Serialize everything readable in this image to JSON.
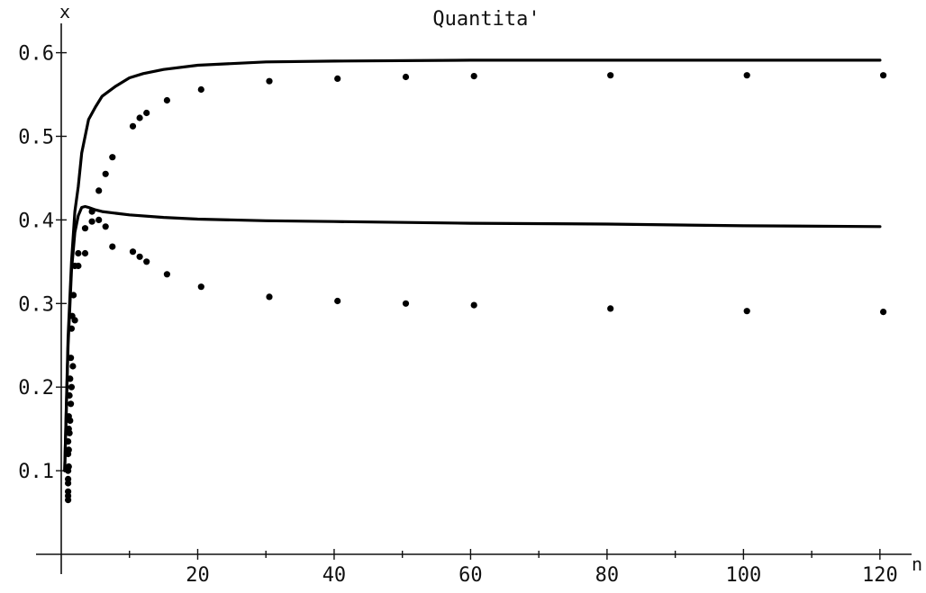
{
  "chart_data": {
    "type": "line",
    "title": "Quantita'",
    "xlabel": "n",
    "ylabel": "x",
    "xlim": [
      0,
      122
    ],
    "ylim": [
      0,
      0.62
    ],
    "x_ticks": [
      20,
      40,
      60,
      80,
      100,
      120
    ],
    "x_tick_labels": [
      "20",
      "40",
      "60",
      "80",
      "100",
      "120"
    ],
    "y_ticks": [
      0.1,
      0.2,
      0.3,
      0.4,
      0.5,
      0.6
    ],
    "y_tick_labels": [
      "0.1",
      "0.2",
      "0.3",
      "0.4",
      "0.5",
      "0.6"
    ],
    "grid": false,
    "legend": "none",
    "lines": [
      {
        "x": [
          0.5,
          1,
          1.5,
          2,
          2.5,
          3,
          4,
          5,
          6,
          8,
          10,
          12,
          15,
          20,
          30,
          40,
          60,
          80,
          100,
          120
        ],
        "y": [
          0.1,
          0.26,
          0.35,
          0.41,
          0.44,
          0.48,
          0.52,
          0.535,
          0.548,
          0.56,
          0.57,
          0.575,
          0.58,
          0.585,
          0.589,
          0.59,
          0.591,
          0.591,
          0.591,
          0.591
        ]
      },
      {
        "x": [
          0.5,
          1,
          1.5,
          2,
          2.5,
          3,
          3.5,
          4,
          5,
          6,
          8,
          10,
          15,
          20,
          30,
          40,
          60,
          80,
          100,
          120
        ],
        "y": [
          0.1,
          0.25,
          0.34,
          0.385,
          0.405,
          0.415,
          0.416,
          0.415,
          0.412,
          0.41,
          0.408,
          0.406,
          0.403,
          0.401,
          0.399,
          0.398,
          0.396,
          0.395,
          0.393,
          0.392
        ]
      }
    ],
    "points": [
      {
        "x": [
          1.0,
          1.0,
          1.0,
          1.0,
          1.0,
          1.1,
          1.1,
          1.2,
          1.3,
          1.4,
          1.5,
          1.6,
          1.8,
          2.0,
          2.5,
          3.5,
          4.5,
          5.5,
          6.5,
          7.5,
          10.5,
          11.5,
          12.5,
          15.5,
          20.5,
          30.5,
          40.5,
          50.5,
          60.5,
          80.5,
          100.5,
          120.5
        ],
        "y": [
          0.07,
          0.085,
          0.1,
          0.12,
          0.135,
          0.15,
          0.165,
          0.19,
          0.21,
          0.235,
          0.27,
          0.285,
          0.31,
          0.345,
          0.36,
          0.39,
          0.41,
          0.435,
          0.455,
          0.475,
          0.512,
          0.522,
          0.528,
          0.543,
          0.556,
          0.566,
          0.569,
          0.571,
          0.572,
          0.573,
          0.573,
          0.573
        ]
      },
      {
        "x": [
          1.0,
          1.0,
          1.0,
          1.1,
          1.1,
          1.2,
          1.3,
          1.4,
          1.5,
          1.7,
          2.0,
          2.5,
          3.5,
          4.5,
          5.5,
          6.5,
          7.5,
          10.5,
          11.5,
          12.5,
          15.5,
          20.5,
          30.5,
          40.5,
          50.5,
          60.5,
          80.5,
          100.5,
          120.5
        ],
        "y": [
          0.065,
          0.075,
          0.09,
          0.105,
          0.125,
          0.145,
          0.16,
          0.18,
          0.2,
          0.225,
          0.28,
          0.345,
          0.36,
          0.398,
          0.4,
          0.392,
          0.368,
          0.362,
          0.356,
          0.35,
          0.335,
          0.32,
          0.308,
          0.303,
          0.3,
          0.298,
          0.294,
          0.291,
          0.29
        ]
      }
    ]
  }
}
